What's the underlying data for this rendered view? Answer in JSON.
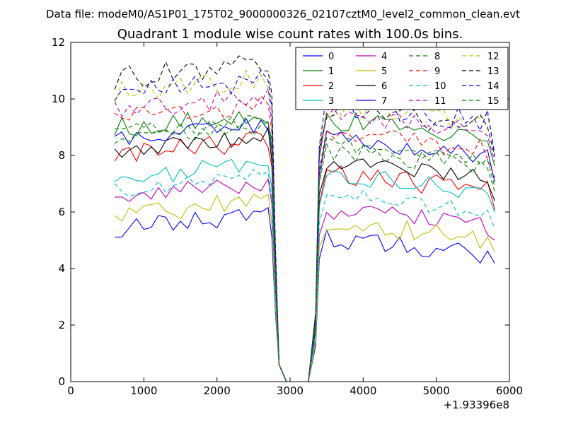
{
  "header": {
    "datafile": "Data file: modeM0/AS1P01_175T02_9000000326_02107cztM0_level2_common_clean.evt"
  },
  "chart_data": {
    "type": "line",
    "title": "Quadrant 1 module wise count rates with 100.0s bins.",
    "xlabel": "",
    "ylabel": "",
    "x_offset_label": "+1.93396e8",
    "xlim": [
      0,
      6000
    ],
    "ylim": [
      0,
      12
    ],
    "xticks": [
      0,
      1000,
      2000,
      3000,
      4000,
      5000,
      6000
    ],
    "yticks": [
      0,
      2,
      4,
      6,
      8,
      10,
      12
    ],
    "grid": false,
    "legend": {
      "placement": "top-right",
      "columns": 4
    },
    "series": [
      {
        "name": "0",
        "color": "#0000ff",
        "dashed": false,
        "level": 5.4,
        "amp": 0.35,
        "post": 5.1
      },
      {
        "name": "1",
        "color": "#008000",
        "dashed": false,
        "level": 9.0,
        "amp": 0.4,
        "post": 9.3
      },
      {
        "name": "2",
        "color": "#ff0000",
        "dashed": false,
        "level": 8.0,
        "amp": 0.4,
        "post": 7.4
      },
      {
        "name": "3",
        "color": "#00bfbf",
        "dashed": false,
        "level": 7.2,
        "amp": 0.35,
        "post": 7.3
      },
      {
        "name": "4",
        "color": "#bf00bf",
        "dashed": false,
        "level": 6.6,
        "amp": 0.35,
        "post": 6.1
      },
      {
        "name": "5",
        "color": "#bfbf00",
        "dashed": false,
        "level": 5.9,
        "amp": 0.4,
        "post": 5.6
      },
      {
        "name": "6",
        "color": "#000000",
        "dashed": false,
        "level": 8.2,
        "amp": 0.3,
        "post": 7.8
      },
      {
        "name": "7",
        "color": "#0000ff",
        "dashed": false,
        "level": 8.6,
        "amp": 0.3,
        "post": 8.6
      },
      {
        "name": "8",
        "color": "#008000",
        "dashed": true,
        "level": 8.8,
        "amp": 0.35,
        "post": 8.2
      },
      {
        "name": "9",
        "color": "#ff0000",
        "dashed": true,
        "level": 9.3,
        "amp": 0.35,
        "post": 8.8
      },
      {
        "name": "10",
        "color": "#00bfbf",
        "dashed": true,
        "level": 6.8,
        "amp": 0.3,
        "post": 6.6
      },
      {
        "name": "11",
        "color": "#bf00bf",
        "dashed": true,
        "level": 9.6,
        "amp": 0.35,
        "post": 9.5
      },
      {
        "name": "12",
        "color": "#bfbf00",
        "dashed": true,
        "level": 10.2,
        "amp": 0.4,
        "post": 9.8
      },
      {
        "name": "13",
        "color": "#000000",
        "dashed": true,
        "level": 10.7,
        "amp": 0.45,
        "post": 9.7
      },
      {
        "name": "14",
        "color": "#0000ff",
        "dashed": true,
        "level": 10.2,
        "amp": 0.4,
        "post": 9.8
      },
      {
        "name": "15",
        "color": "#008000",
        "dashed": true,
        "level": 8.6,
        "amp": 0.35,
        "post": 8.4
      }
    ]
  }
}
